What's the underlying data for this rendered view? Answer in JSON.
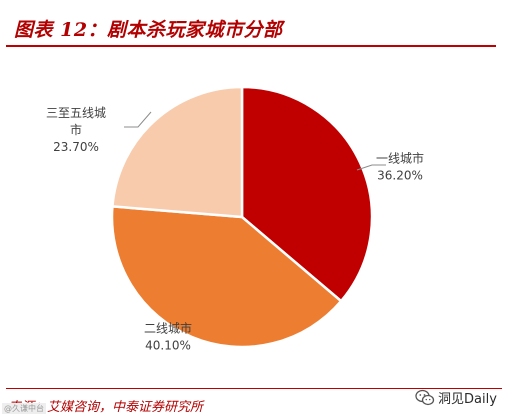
{
  "title": "图表 12：剧本杀玩家城市分部",
  "source": "来源：艾媒咨询，中泰证券研究所",
  "watermark_stamp": "@久谦中台",
  "wechat_account": "洞见Daily",
  "colors": {
    "title": "#b30000",
    "tier1": "#c00000",
    "tier2": "#ed7d31",
    "tier3": "#f8cbad"
  },
  "chart_data": {
    "type": "pie",
    "title": "",
    "categories": [
      "一线城市",
      "二线城市",
      "三至五线城市"
    ],
    "values": [
      36.2,
      40.1,
      23.7
    ],
    "labels": [
      {
        "name_lines": [
          "一线城市"
        ],
        "pct": "36.20%"
      },
      {
        "name_lines": [
          "二线城市"
        ],
        "pct": "40.10%"
      },
      {
        "name_lines": [
          "三至五线城",
          "市"
        ],
        "pct": "23.70%"
      }
    ],
    "start_angle": "12 o'clock",
    "direction": "clockwise",
    "legend": "none"
  }
}
